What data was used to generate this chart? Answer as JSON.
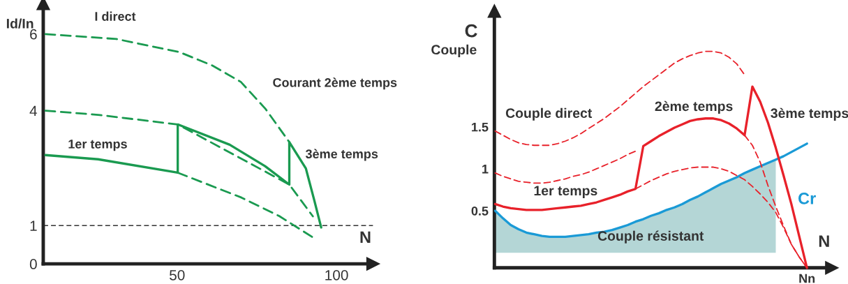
{
  "chart_data": [
    {
      "type": "line",
      "xlabel": "N",
      "ylabel": "Id/In",
      "xlim": [
        8,
        111.5
      ],
      "ylim": [
        0,
        6.8
      ],
      "xticks": [
        50,
        100
      ],
      "yticks": [
        0,
        1,
        4,
        6
      ],
      "grid": false,
      "series": [
        {
          "color": "#1a9a50",
          "line_style": "dashed",
          "x": [
            8.7,
            31,
            50.7,
            61,
            70,
            77.7,
            85.2
          ],
          "values": [
            6,
            5.87,
            5.53,
            5.18,
            4.75,
            4.05,
            3.18
          ]
        },
        {
          "color": "#1a9a50",
          "line_style": "dashed",
          "x": [
            8.7,
            25.2,
            50.2,
            85.2,
            88.5,
            92.6
          ],
          "values": [
            4,
            3.89,
            3.64,
            2.07,
            1.7,
            1.24
          ]
        },
        {
          "color": "#1a9a50",
          "line_style": "dashed",
          "x": [
            50.2,
            70.2,
            82,
            92.6
          ],
          "values": [
            2.38,
            1.73,
            1.25,
            0.69
          ]
        },
        {
          "color": "#1a9a50",
          "line_style": "solid",
          "x": [
            8.7,
            25.2,
            50.2,
            50.2,
            66.5,
            77.6,
            85.2,
            85.2,
            90.4,
            93,
            95.2
          ],
          "values": [
            2.84,
            2.73,
            2.38,
            3.64,
            3.11,
            2.55,
            2.07,
            3.18,
            2.49,
            1.67,
            0.95
          ]
        }
      ],
      "ref_lines": [
        {
          "axis": "y",
          "value": 1,
          "color": "#333333",
          "line_style": "dashed"
        }
      ],
      "annotations": [
        "I direct",
        "Courant 2ème temps",
        "1er temps",
        "3ème temps"
      ]
    },
    {
      "type": "line",
      "xlabel": "N",
      "ylabel": "C",
      "ylim": [
        -0.18,
        2.88
      ],
      "yticks": [
        0.5,
        1,
        1.5
      ],
      "grid": false,
      "categories": [
        null,
        null,
        null,
        null,
        null,
        null,
        null,
        null,
        null,
        null,
        null,
        null,
        null,
        null,
        null,
        null,
        null,
        null,
        null,
        null,
        null,
        null,
        null,
        null,
        null,
        null,
        null,
        null,
        null,
        null,
        null,
        null,
        null,
        null,
        null,
        null,
        null,
        null,
        null,
        null,
        "Nn"
      ],
      "series": [
        {
          "type": "area",
          "color": "#b4d6d6",
          "values": [
            0.5,
            0.41,
            0.33,
            0.28,
            0.24,
            0.22,
            0.2,
            0.19,
            0.19,
            0.19,
            0.2,
            0.21,
            0.22,
            0.24,
            0.25,
            0.27,
            0.3,
            0.33,
            0.37,
            0.4,
            0.44,
            0.47,
            0.51,
            0.54,
            0.58,
            0.63,
            0.67,
            0.72,
            0.77,
            0.82,
            0.86,
            0.9,
            0.95,
            0.99,
            1.03,
            1.07,
            1.11,
            null,
            null,
            null,
            null
          ]
        },
        {
          "name": "Cr",
          "color": "#1a9ad6",
          "line_style": "solid",
          "values": [
            0.5,
            0.41,
            0.33,
            0.28,
            0.24,
            0.22,
            0.2,
            0.19,
            0.19,
            0.19,
            0.2,
            0.21,
            0.22,
            0.24,
            0.25,
            0.27,
            0.3,
            0.33,
            0.37,
            0.4,
            0.44,
            0.47,
            0.51,
            0.54,
            0.58,
            0.63,
            0.67,
            0.72,
            0.77,
            0.82,
            0.86,
            0.9,
            0.95,
            0.99,
            1.03,
            1.07,
            1.11,
            1.15,
            1.2,
            1.25,
            1.3
          ]
        },
        {
          "color": "#e8212a",
          "line_style": "dashed",
          "values": [
            1.45,
            1.4,
            1.35,
            1.31,
            1.29,
            1.28,
            1.28,
            1.28,
            1.3,
            1.33,
            1.37,
            1.42,
            1.48,
            1.54,
            1.6,
            1.67,
            1.74,
            1.82,
            1.9,
            1.98,
            2.05,
            2.12,
            2.19,
            2.26,
            2.31,
            2.35,
            2.38,
            2.4,
            2.4,
            2.38,
            2.33,
            2.25,
            2.12,
            null,
            null,
            null,
            null,
            null,
            null,
            null,
            null
          ]
        },
        {
          "color": "#e8212a",
          "line_style": "dashed",
          "values": [
            0.95,
            0.91,
            0.88,
            0.85,
            0.84,
            0.83,
            0.83,
            0.84,
            0.86,
            0.88,
            0.91,
            0.93,
            0.96,
            1.0,
            1.04,
            1.08,
            1.12,
            1.17,
            1.21,
            null,
            null,
            null,
            null,
            null,
            null,
            null,
            null,
            null,
            null,
            null,
            null,
            null,
            1.4,
            1.28,
            1.08,
            0.8,
            0.55,
            0.32,
            0.1,
            -0.05,
            -0.18
          ]
        },
        {
          "color": "#e8212a",
          "line_style": "dashed",
          "values": [
            null,
            null,
            null,
            null,
            null,
            null,
            null,
            null,
            null,
            null,
            null,
            null,
            null,
            null,
            null,
            null,
            null,
            null,
            0.76,
            0.81,
            0.86,
            0.9,
            0.94,
            0.97,
            0.99,
            1.01,
            1.02,
            1.02,
            1.02,
            1.0,
            0.97,
            0.92,
            0.87,
            0.79,
            0.7,
            0.6,
            0.48,
            0.3,
            0.1,
            -0.05,
            -0.18
          ]
        },
        {
          "color": "#e8212a",
          "line_style": "solid",
          "values": [
            0.58,
            0.55,
            0.53,
            0.52,
            0.51,
            0.51,
            0.51,
            0.52,
            0.53,
            0.54,
            0.55,
            0.56,
            0.58,
            0.6,
            0.63,
            0.66,
            0.69,
            0.73,
            0.76,
            1.27,
            1.33,
            1.39,
            1.44,
            1.49,
            1.53,
            1.57,
            1.59,
            1.6,
            1.6,
            1.58,
            1.54,
            1.48,
            1.4,
            1.98,
            1.8,
            1.55,
            1.25,
            0.92,
            0.58,
            0.2,
            -0.18
          ]
        }
      ],
      "annotations": [
        "Couple",
        "Couple direct",
        "2ème temps",
        "3ème temps",
        "1er temps",
        "Couple résistant"
      ]
    }
  ]
}
